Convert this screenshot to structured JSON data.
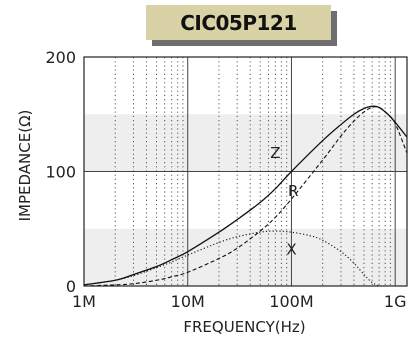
{
  "chart_data": {
    "type": "line",
    "title": "CIC05P121",
    "xlabel": "FREQUENCY(Hz)",
    "ylabel": "IMPEDANCE(Ω)",
    "x_scale": "log",
    "xlim": [
      1000000,
      1300000000
    ],
    "ylim": [
      0,
      200
    ],
    "x_ticks": [
      {
        "value": 1000000,
        "label": "1M"
      },
      {
        "value": 10000000,
        "label": "10M"
      },
      {
        "value": 100000000,
        "label": "100M"
      },
      {
        "value": 1000000000,
        "label": "1G"
      }
    ],
    "y_ticks": [
      {
        "value": 0,
        "label": "0"
      },
      {
        "value": 100,
        "label": "100"
      },
      {
        "value": 200,
        "label": "200"
      }
    ],
    "grid": true,
    "shaded_bands": [
      [
        0,
        50
      ],
      [
        100,
        150
      ]
    ],
    "series": [
      {
        "name": "Z",
        "style": "solid",
        "x": [
          1000000,
          2000000,
          3000000,
          5000000,
          7000000,
          10000000,
          20000000,
          30000000,
          50000000,
          70000000,
          100000000,
          200000000,
          300000000,
          400000000,
          500000000,
          600000000,
          700000000,
          850000000,
          1000000000,
          1300000000
        ],
        "y": [
          1,
          5,
          10,
          17,
          23,
          30,
          47,
          58,
          73,
          85,
          100,
          127,
          141,
          150,
          155,
          157,
          156,
          150,
          143,
          130
        ]
      },
      {
        "name": "R",
        "style": "dashed",
        "x": [
          1000000,
          2000000,
          3000000,
          5000000,
          7000000,
          10000000,
          20000000,
          30000000,
          50000000,
          70000000,
          100000000,
          200000000,
          300000000,
          400000000,
          500000000,
          600000000,
          700000000,
          850000000,
          1000000000,
          1300000000
        ],
        "y": [
          0,
          1,
          2,
          5,
          8,
          12,
          24,
          33,
          48,
          60,
          76,
          110,
          131,
          144,
          152,
          156,
          156,
          150,
          142,
          116
        ]
      },
      {
        "name": "X",
        "style": "dotted",
        "x": [
          1000000,
          2000000,
          3000000,
          5000000,
          7000000,
          10000000,
          20000000,
          30000000,
          50000000,
          70000000,
          100000000,
          150000000,
          200000000,
          300000000,
          400000000,
          500000000,
          600000000,
          700000000
        ],
        "y": [
          1,
          5,
          9,
          16,
          21,
          27,
          38,
          43,
          47,
          48,
          47,
          44,
          40,
          30,
          20,
          10,
          3,
          0
        ]
      }
    ],
    "series_labels": [
      {
        "text": "Z",
        "x": 70000000,
        "y": 116
      },
      {
        "text": "R",
        "x": 104000000,
        "y": 83
      },
      {
        "text": "X",
        "x": 100000000,
        "y": 32
      }
    ]
  },
  "colors": {
    "band": "#eeeeee",
    "frame": "#222222",
    "grid_major": "#444444",
    "grid_minor": "#555555",
    "curve": "#111111",
    "title_box": "#d8d2a6",
    "title_shadow": "#6e6e6e"
  }
}
